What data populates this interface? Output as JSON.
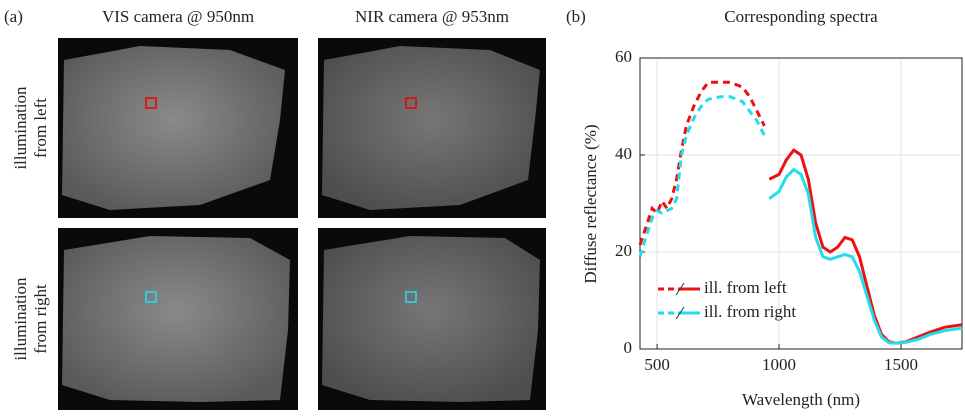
{
  "panel_a": {
    "label": "(a)",
    "columns": [
      "VIS camera @ 950nm",
      "NIR camera @ 953nm"
    ],
    "rows": [
      [
        "illumination",
        "from left"
      ],
      [
        "illumination",
        "from right"
      ]
    ]
  },
  "chart_data": {
    "type": "line",
    "label": "(b)",
    "title": "Corresponding spectra",
    "xlabel": "Wavelength (nm)",
    "ylabel": "Diffuse reflectance (%)",
    "xlim": [
      430,
      1750
    ],
    "ylim": [
      0,
      60
    ],
    "xticks": [
      500,
      1000,
      1500
    ],
    "yticks": [
      0,
      20,
      40,
      60
    ],
    "grid": true,
    "legend": "lower left",
    "series": [
      {
        "name": "ill. from left",
        "color": "#ee1111",
        "segments": [
          {
            "style": "dashed",
            "x": [
              430,
              460,
              480,
              500,
              520,
              540,
              560,
              580,
              600,
              620,
              650,
              680,
              710,
              760,
              800,
              850,
              880,
              910,
              940
            ],
            "values": [
              21.5,
              26,
              29,
              28,
              30.5,
              29,
              31,
              35,
              41,
              46,
              50,
              53,
              55,
              55,
              55,
              54,
              52,
              49,
              46
            ]
          },
          {
            "style": "solid",
            "x": [
              960,
              1000,
              1030,
              1060,
              1090,
              1120,
              1150,
              1180,
              1210,
              1240,
              1270,
              1300,
              1330,
              1360,
              1390,
              1420,
              1450,
              1480,
              1520,
              1570,
              1620,
              1680,
              1750
            ],
            "values": [
              35,
              36,
              39,
              41,
              40,
              35,
              26,
              21,
              20,
              21,
              23,
              22.5,
              19,
              13,
              7,
              3,
              1.5,
              1.2,
              1.5,
              2.5,
              3.5,
              4.5,
              5
            ]
          }
        ]
      },
      {
        "name": "ill. from right",
        "color": "#22ddee",
        "segments": [
          {
            "style": "dashed",
            "x": [
              430,
              460,
              480,
              500,
              520,
              540,
              560,
              580,
              600,
              620,
              650,
              680,
              710,
              760,
              800,
              850,
              880,
              910,
              940
            ],
            "values": [
              19,
              24,
              27,
              28.5,
              28,
              28.5,
              29,
              31,
              40,
              44,
              47.5,
              50,
              51.5,
              52,
              52,
              51,
              49,
              47,
              44
            ]
          },
          {
            "style": "solid",
            "x": [
              960,
              1000,
              1030,
              1060,
              1090,
              1120,
              1150,
              1180,
              1210,
              1240,
              1270,
              1300,
              1330,
              1360,
              1390,
              1420,
              1450,
              1480,
              1520,
              1570,
              1620,
              1680,
              1750
            ],
            "values": [
              31,
              32.5,
              35.5,
              37,
              36,
              32,
              23,
              19,
              18.5,
              19,
              19.5,
              19,
              16,
              11,
              6,
              2.5,
              1.3,
              1.2,
              1.4,
              2,
              3,
              3.8,
              4.3
            ]
          }
        ]
      }
    ]
  }
}
